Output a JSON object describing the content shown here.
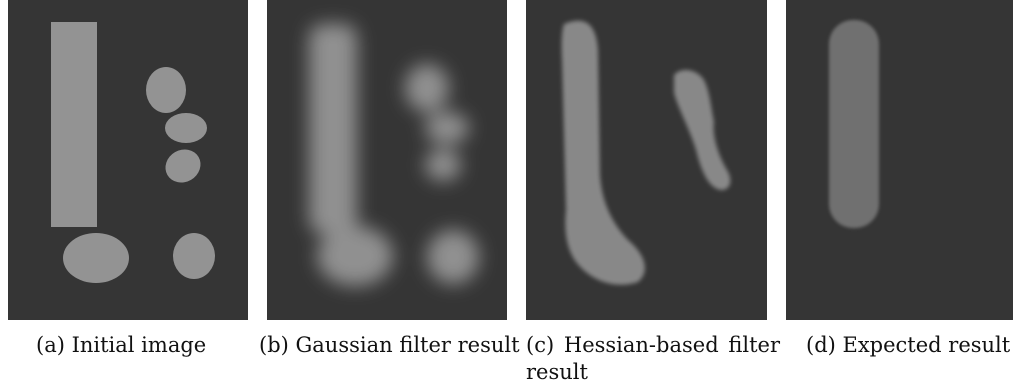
{
  "figure": {
    "panels": [
      {
        "id": "a",
        "caption": "(a) Initial image"
      },
      {
        "id": "b",
        "caption": "(b) Gaussian filter result"
      },
      {
        "id": "c",
        "caption": "(c) Hessian-based filter result"
      },
      {
        "id": "d",
        "caption": "(d) Expected result"
      }
    ],
    "colors": {
      "background": "#353535",
      "shape": "#939393",
      "shape_dim": "#888888",
      "shape_expected": "#6f6f6f"
    }
  }
}
